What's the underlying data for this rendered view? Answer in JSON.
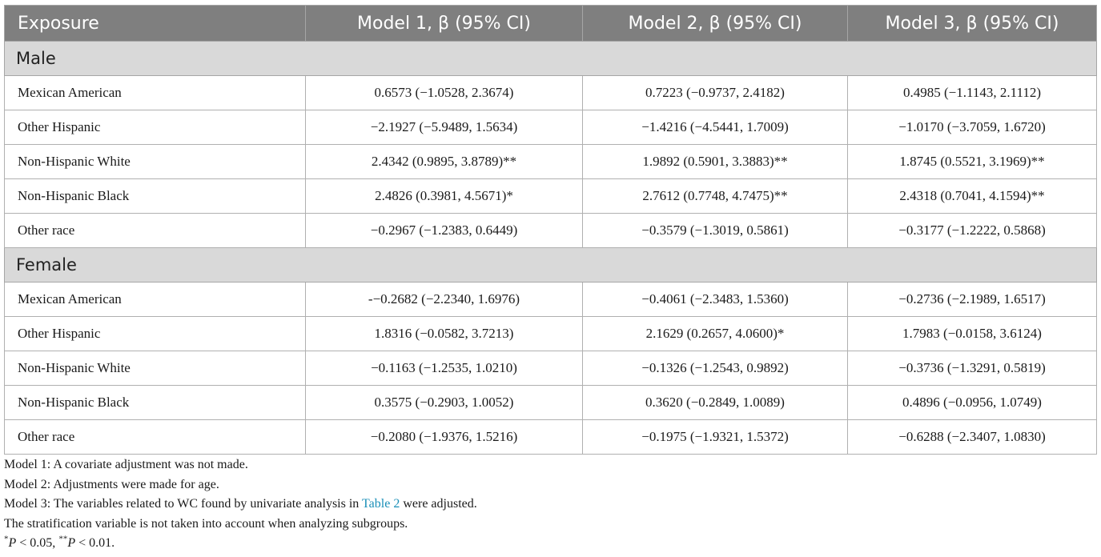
{
  "table": {
    "headers": [
      "Exposure",
      "Model 1, β (95% CI)",
      "Model 2, β (95% CI)",
      "Model 3, β (95% CI)"
    ],
    "groups": [
      {
        "label": "Male",
        "rows": [
          [
            "Mexican American",
            "0.6573 (−1.0528, 2.3674)",
            "0.7223 (−0.9737, 2.4182)",
            "0.4985 (−1.1143, 2.1112)"
          ],
          [
            "Other Hispanic",
            "−2.1927 (−5.9489, 1.5634)",
            "−1.4216 (−4.5441, 1.7009)",
            "−1.0170 (−3.7059, 1.6720)"
          ],
          [
            "Non-Hispanic White",
            "2.4342 (0.9895, 3.8789)**",
            "1.9892 (0.5901, 3.3883)**",
            "1.8745 (0.5521, 3.1969)**"
          ],
          [
            "Non-Hispanic Black",
            "2.4826 (0.3981, 4.5671)*",
            "2.7612 (0.7748, 4.7475)**",
            "2.4318 (0.7041, 4.1594)**"
          ],
          [
            "Other race",
            "−0.2967 (−1.2383, 0.6449)",
            "−0.3579 (−1.3019, 0.5861)",
            "−0.3177 (−1.2222, 0.5868)"
          ]
        ]
      },
      {
        "label": "Female",
        "rows": [
          [
            "Mexican American",
            "-−0.2682 (−2.2340, 1.6976)",
            "−0.4061 (−2.3483, 1.5360)",
            "−0.2736 (−2.1989, 1.6517)"
          ],
          [
            "Other Hispanic",
            "1.8316 (−0.0582, 3.7213)",
            "2.1629 (0.2657, 4.0600)*",
            "1.7983 (−0.0158, 3.6124)"
          ],
          [
            "Non-Hispanic White",
            "−0.1163 (−1.2535, 1.0210)",
            "−0.1326 (−1.2543, 0.9892)",
            "−0.3736 (−1.3291, 0.5819)"
          ],
          [
            "Non-Hispanic Black",
            "0.3575 (−0.2903, 1.0052)",
            "0.3620 (−0.2849, 1.0089)",
            "0.4896 (−0.0956, 1.0749)"
          ],
          [
            "Other race",
            "−0.2080 (−1.9376, 1.5216)",
            "−0.1975 (−1.9321, 1.5372)",
            "−0.6288 (−2.3407, 1.0830)"
          ]
        ]
      }
    ]
  },
  "notes": {
    "model1": "Model 1: A covariate adjustment was not made.",
    "model2": "Model 2: Adjustments were made for age.",
    "model3_pre": "Model 3: The variables related to WC found by univariate analysis in ",
    "model3_link": "Table 2",
    "model3_post": " were adjusted.",
    "stratification": "The stratification variable is not taken into account when analyzing subgroups.",
    "sig1_mark": "*",
    "sig1_p": "P",
    "sig1_rest": " < 0.05, ",
    "sig2_mark": "**",
    "sig2_p": "P",
    "sig2_rest": " < 0.01."
  },
  "colors": {
    "header_bg": "#7f7f7f",
    "group_bg": "#d9d9d9",
    "link": "#1a8fb8"
  }
}
